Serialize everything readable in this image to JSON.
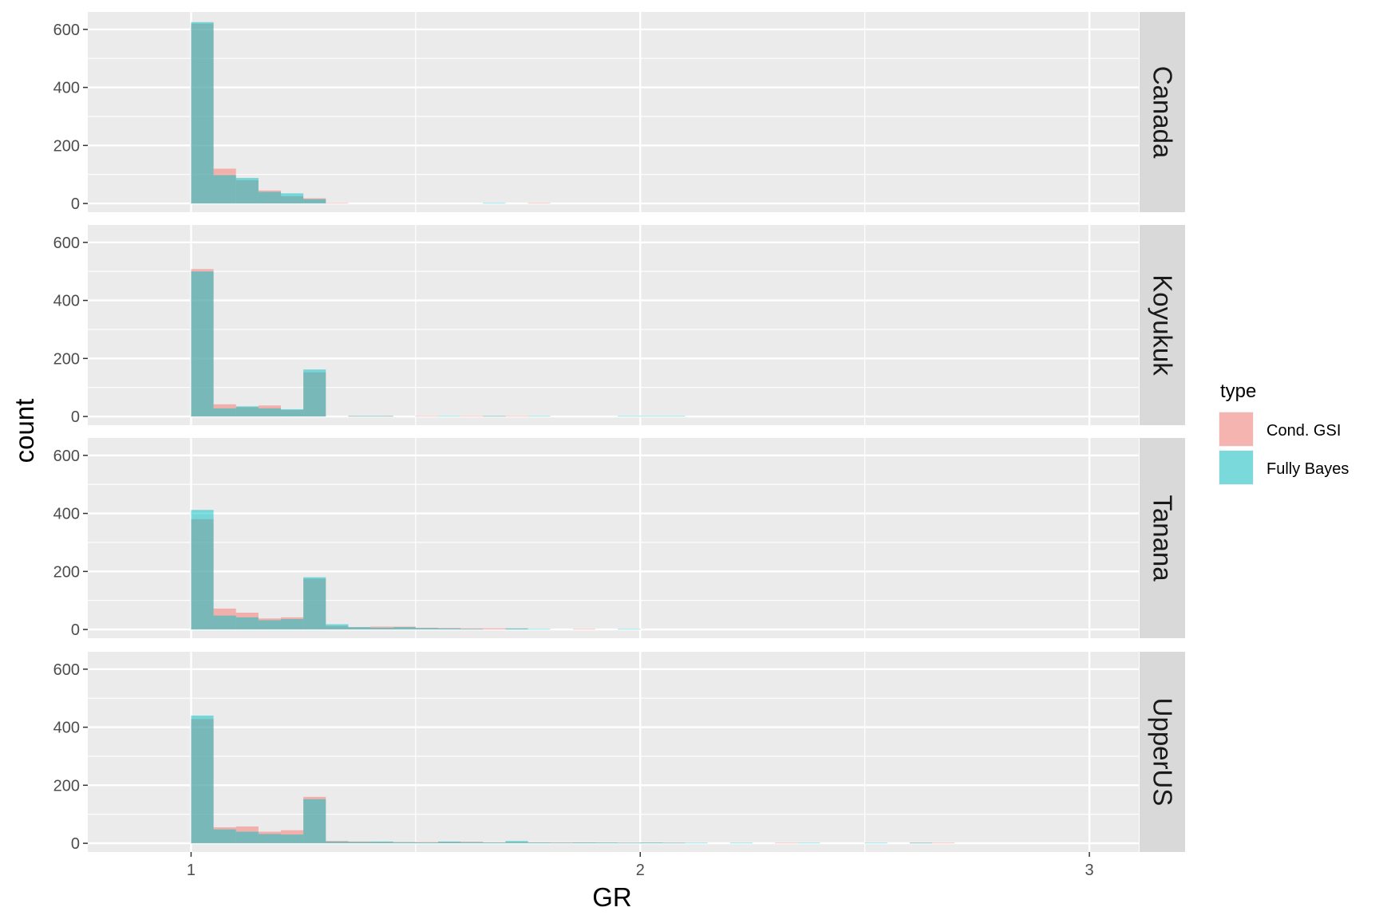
{
  "chart_data": {
    "type": "bar",
    "subtype": "overlaid histogram, faceted by row",
    "xlabel": "GR",
    "ylabel": "count",
    "xlim": [
      0.77,
      3.11
    ],
    "ylim": [
      -30,
      660
    ],
    "x_ticks": [
      "1",
      "2",
      "3"
    ],
    "y_ticks": [
      "0",
      "200",
      "400",
      "600"
    ],
    "bin_width": 0.05,
    "grid": true,
    "legend": {
      "title": "type",
      "position": "right",
      "entries": [
        {
          "label": "Cond. GSI",
          "color": "#f8766d"
        },
        {
          "label": "Fully Bayes",
          "color": "#00bfc4"
        }
      ]
    },
    "facets": [
      {
        "label": "Canada",
        "series": [
          {
            "name": "Cond. GSI",
            "bins": [
              [
                1.0,
                620
              ],
              [
                1.05,
                120
              ],
              [
                1.1,
                80
              ],
              [
                1.15,
                45
              ],
              [
                1.2,
                25
              ],
              [
                1.25,
                18
              ],
              [
                1.3,
                2
              ],
              [
                1.75,
                2
              ]
            ]
          },
          {
            "name": "Fully Bayes",
            "bins": [
              [
                1.0,
                625
              ],
              [
                1.05,
                98
              ],
              [
                1.1,
                88
              ],
              [
                1.15,
                40
              ],
              [
                1.2,
                35
              ],
              [
                1.25,
                15
              ],
              [
                1.65,
                2
              ]
            ]
          }
        ]
      },
      {
        "label": "Koyukuk",
        "series": [
          {
            "name": "Cond. GSI",
            "bins": [
              [
                1.0,
                508
              ],
              [
                1.05,
                42
              ],
              [
                1.1,
                32
              ],
              [
                1.15,
                38
              ],
              [
                1.2,
                22
              ],
              [
                1.25,
                152
              ],
              [
                1.35,
                2
              ],
              [
                1.4,
                2
              ],
              [
                1.5,
                2
              ],
              [
                1.6,
                2
              ],
              [
                1.65,
                2
              ],
              [
                1.7,
                2
              ]
            ]
          },
          {
            "name": "Fully Bayes",
            "bins": [
              [
                1.0,
                500
              ],
              [
                1.05,
                28
              ],
              [
                1.1,
                35
              ],
              [
                1.15,
                28
              ],
              [
                1.2,
                25
              ],
              [
                1.25,
                162
              ],
              [
                1.35,
                2
              ],
              [
                1.4,
                2
              ],
              [
                1.55,
                2
              ],
              [
                1.65,
                2
              ],
              [
                1.75,
                2
              ],
              [
                1.95,
                2
              ],
              [
                2.0,
                2
              ],
              [
                2.05,
                2
              ]
            ]
          }
        ]
      },
      {
        "label": "Tanana",
        "series": [
          {
            "name": "Cond. GSI",
            "bins": [
              [
                1.0,
                380
              ],
              [
                1.05,
                72
              ],
              [
                1.1,
                58
              ],
              [
                1.15,
                38
              ],
              [
                1.2,
                42
              ],
              [
                1.25,
                175
              ],
              [
                1.3,
                12
              ],
              [
                1.35,
                8
              ],
              [
                1.4,
                10
              ],
              [
                1.45,
                10
              ],
              [
                1.5,
                6
              ],
              [
                1.55,
                5
              ],
              [
                1.6,
                4
              ],
              [
                1.65,
                4
              ],
              [
                1.7,
                3
              ],
              [
                1.85,
                2
              ]
            ]
          },
          {
            "name": "Fully Bayes",
            "bins": [
              [
                1.0,
                412
              ],
              [
                1.05,
                48
              ],
              [
                1.1,
                42
              ],
              [
                1.15,
                32
              ],
              [
                1.2,
                36
              ],
              [
                1.25,
                180
              ],
              [
                1.3,
                18
              ],
              [
                1.35,
                8
              ],
              [
                1.4,
                6
              ],
              [
                1.45,
                8
              ],
              [
                1.5,
                5
              ],
              [
                1.55,
                4
              ],
              [
                1.6,
                2
              ],
              [
                1.7,
                4
              ],
              [
                1.75,
                2
              ],
              [
                1.95,
                2
              ]
            ]
          }
        ]
      },
      {
        "label": "UpperUS",
        "series": [
          {
            "name": "Cond. GSI",
            "bins": [
              [
                1.0,
                428
              ],
              [
                1.05,
                55
              ],
              [
                1.1,
                58
              ],
              [
                1.15,
                40
              ],
              [
                1.2,
                45
              ],
              [
                1.25,
                160
              ],
              [
                1.3,
                8
              ],
              [
                1.35,
                6
              ],
              [
                1.4,
                5
              ],
              [
                1.45,
                4
              ],
              [
                1.5,
                4
              ],
              [
                1.55,
                5
              ],
              [
                1.6,
                5
              ],
              [
                1.65,
                3
              ],
              [
                1.7,
                4
              ],
              [
                1.75,
                3
              ],
              [
                1.8,
                3
              ],
              [
                1.85,
                3
              ],
              [
                1.9,
                2
              ],
              [
                1.95,
                2
              ],
              [
                2.0,
                2
              ],
              [
                2.05,
                2
              ],
              [
                2.3,
                2
              ],
              [
                2.6,
                2
              ],
              [
                2.65,
                2
              ]
            ]
          },
          {
            "name": "Fully Bayes",
            "bins": [
              [
                1.0,
                440
              ],
              [
                1.05,
                48
              ],
              [
                1.1,
                40
              ],
              [
                1.15,
                32
              ],
              [
                1.2,
                30
              ],
              [
                1.25,
                152
              ],
              [
                1.3,
                6
              ],
              [
                1.35,
                5
              ],
              [
                1.4,
                6
              ],
              [
                1.45,
                4
              ],
              [
                1.5,
                3
              ],
              [
                1.55,
                6
              ],
              [
                1.6,
                4
              ],
              [
                1.65,
                3
              ],
              [
                1.7,
                8
              ],
              [
                1.75,
                3
              ],
              [
                1.8,
                2
              ],
              [
                1.85,
                3
              ],
              [
                1.9,
                3
              ],
              [
                1.95,
                2
              ],
              [
                2.0,
                3
              ],
              [
                2.05,
                2
              ],
              [
                2.1,
                2
              ],
              [
                2.2,
                2
              ],
              [
                2.35,
                2
              ],
              [
                2.5,
                2
              ],
              [
                2.6,
                2
              ]
            ]
          }
        ]
      }
    ]
  }
}
